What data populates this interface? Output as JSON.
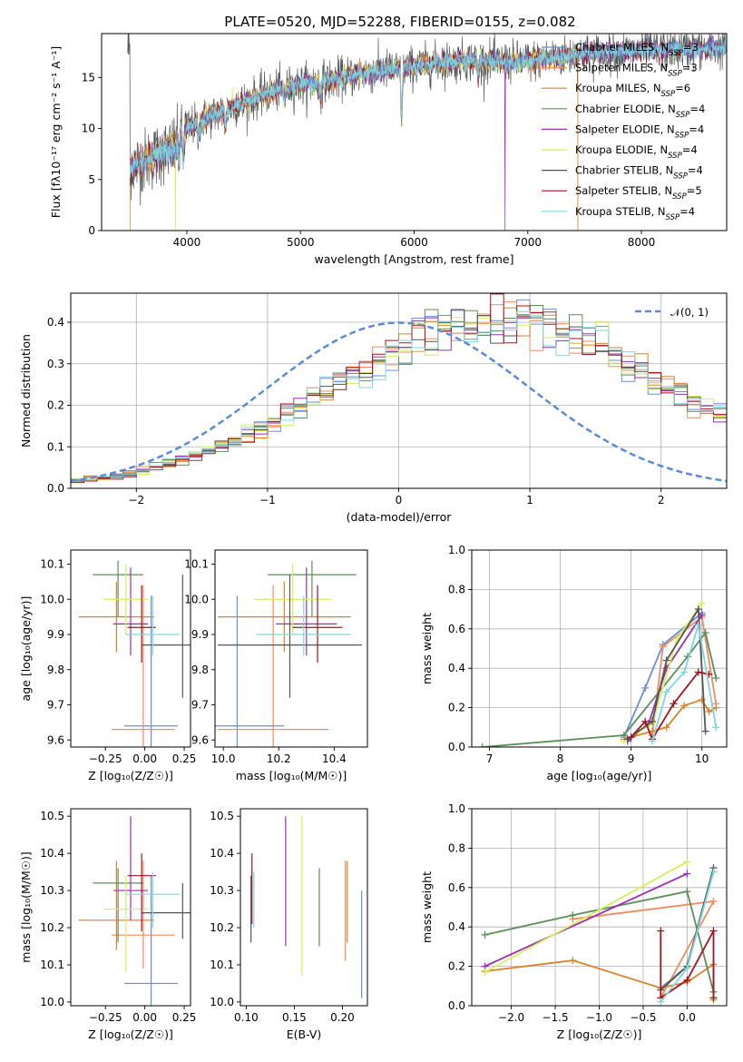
{
  "figure": {
    "title": "PLATE=0520, MJD=52288, FIBERID=0155, z=0.082"
  },
  "colors": {
    "series": [
      "#6a8fd8",
      "#f08c5f",
      "#d9822b",
      "#5a8f5a",
      "#9c2fb0",
      "#d8ee5c",
      "#555555",
      "#a0141e",
      "#7fd6dd"
    ],
    "gaussian": "#5b8bd6",
    "grid": "#b0b0b0"
  },
  "legend_entries": [
    {
      "base": "Chabrier MILES, N",
      "sub": "SSP",
      "eq": "=3"
    },
    {
      "base": "Salpeter MILES, N",
      "sub": "SSP",
      "eq": "=3"
    },
    {
      "base": "Kroupa MILES, N",
      "sub": "SSP",
      "eq": "=6"
    },
    {
      "base": "Chabrier ELODIE, N",
      "sub": "SSP",
      "eq": "=4"
    },
    {
      "base": "Salpeter ELODIE, N",
      "sub": "SSP",
      "eq": "=4"
    },
    {
      "base": "Kroupa ELODIE, N",
      "sub": "SSP",
      "eq": "=4"
    },
    {
      "base": "Chabrier STELIB, N",
      "sub": "SSP",
      "eq": "=4"
    },
    {
      "base": "Salpeter STELIB, N",
      "sub": "SSP",
      "eq": "=5"
    },
    {
      "base": "Kroupa STELIB, N",
      "sub": "SSP",
      "eq": "=4"
    }
  ],
  "gaussian_label": "𝒩(0, 1)",
  "chart_data": [
    {
      "id": "spectrum",
      "type": "line",
      "xlabel": "wavelength [Angstrom, rest frame]",
      "ylabel": "Flux [fλ10⁻¹⁷ erg cm⁻² s⁻¹ A⁻¹]",
      "xlim": [
        3250,
        8750
      ],
      "ylim": [
        0,
        19.3
      ],
      "xticks": [
        4000,
        5000,
        6000,
        7000,
        8000
      ],
      "yticks": [
        0,
        5,
        10,
        15
      ],
      "grid": false,
      "legend": "right",
      "continuum": [
        [
          3500,
          6.2
        ],
        [
          3700,
          7.2
        ],
        [
          3900,
          8.3
        ],
        [
          4000,
          10.0
        ],
        [
          4200,
          11.2
        ],
        [
          4500,
          12.6
        ],
        [
          4800,
          13.8
        ],
        [
          5000,
          14.3
        ],
        [
          5300,
          14.8
        ],
        [
          5600,
          15.5
        ],
        [
          5900,
          15.9
        ],
        [
          6200,
          16.4
        ],
        [
          6500,
          16.7
        ],
        [
          6800,
          16.5
        ],
        [
          7000,
          16.6
        ],
        [
          7300,
          17.0
        ],
        [
          7600,
          17.4
        ],
        [
          8000,
          17.6
        ],
        [
          8400,
          17.8
        ],
        [
          8750,
          17.9
        ]
      ],
      "absorption": [
        [
          3933,
          7.5
        ],
        [
          3968,
          7.0
        ],
        [
          4101,
          8.9
        ],
        [
          4340,
          10.0
        ],
        [
          4861,
          12.9
        ],
        [
          5175,
          13.0
        ],
        [
          5890,
          10.6
        ],
        [
          6563,
          14.9
        ]
      ],
      "dropouts": [
        [
          3500,
          0
        ],
        [
          3900,
          0
        ],
        [
          6800,
          0
        ],
        [
          7440,
          0
        ]
      ]
    },
    {
      "id": "residual-hist",
      "type": "line",
      "xlabel": "(data-model)/error",
      "ylabel": "Normed distribution",
      "xlim": [
        -2.5,
        2.5
      ],
      "ylim": [
        0,
        0.47
      ],
      "xticks": [
        -2,
        -1,
        0,
        1,
        2
      ],
      "yticks": [
        0.0,
        0.1,
        0.2,
        0.3,
        0.4
      ],
      "grid": true,
      "legend": "top-right",
      "bin_edges_start": -2.5,
      "bin_width": 0.1,
      "reference_density": [
        0.018,
        0.022,
        0.026,
        0.032,
        0.037,
        0.044,
        0.052,
        0.06,
        0.069,
        0.078,
        0.09,
        0.102,
        0.115,
        0.13,
        0.145,
        0.161,
        0.178,
        0.196,
        0.214,
        0.233,
        0.252,
        0.271,
        0.29,
        0.308,
        0.325,
        0.341,
        0.355,
        0.368,
        0.379,
        0.388,
        0.394,
        0.398,
        0.399,
        0.399,
        0.397,
        0.393,
        0.386,
        0.377,
        0.366,
        0.352,
        0.336,
        0.319,
        0.3,
        0.281,
        0.262,
        0.243,
        0.224,
        0.206,
        0.188,
        0.171,
        0.155,
        0.14,
        0.126,
        0.113,
        0.1,
        0.089,
        0.079,
        0.07,
        0.061,
        0.054,
        0.047,
        0.041,
        0.036,
        0.032,
        0.028,
        0.024,
        0.021,
        0.019,
        0.018,
        0.017
      ],
      "gaussian": {
        "mu": 0,
        "sigma": 1,
        "xrange": [
          -2.5,
          2.5
        ]
      }
    },
    {
      "id": "age-vs-z",
      "type": "scatter",
      "xlabel": "Z [log₁₀(Z/Z☉)]",
      "ylabel": "age  [log₁₀(age/yr)]",
      "xlim": [
        -0.47,
        0.29
      ],
      "ylim": [
        9.58,
        10.14
      ],
      "xticks": [
        -0.25,
        0.0,
        0.25
      ],
      "xticklabels": [
        "−0.25",
        "0.00",
        "0.25"
      ],
      "yticks": [
        9.6,
        9.7,
        9.8,
        9.9,
        10.0,
        10.1
      ],
      "grid": false,
      "points": [
        {
          "x": 0.04,
          "y": 9.64,
          "xerr": 0.17,
          "ylo": 9.56,
          "yhi": 10.01,
          "s": 0
        },
        {
          "x": -0.01,
          "y": 9.63,
          "xerr": 0.2,
          "ylo": 9.55,
          "yhi": 10.04,
          "s": 1
        },
        {
          "x": -0.18,
          "y": 9.95,
          "xerr": 0.24,
          "ylo": 9.85,
          "yhi": 10.05,
          "s": 2
        },
        {
          "x": -0.17,
          "y": 10.07,
          "xerr": 0.16,
          "ylo": 9.95,
          "yhi": 10.11,
          "s": 3
        },
        {
          "x": -0.09,
          "y": 9.93,
          "xerr": 0.11,
          "ylo": 9.84,
          "yhi": 10.09,
          "s": 4
        },
        {
          "x": -0.12,
          "y": 10.0,
          "xerr": 0.14,
          "ylo": 9.9,
          "yhi": 10.1,
          "s": 5
        },
        {
          "x": 0.24,
          "y": 9.87,
          "xerr": 0.26,
          "ylo": 9.72,
          "yhi": 10.07,
          "s": 6
        },
        {
          "x": -0.02,
          "y": 9.92,
          "xerr": 0.09,
          "ylo": 9.82,
          "yhi": 10.04,
          "s": 7
        },
        {
          "x": 0.05,
          "y": 9.9,
          "xerr": 0.17,
          "ylo": 9.84,
          "yhi": 10.01,
          "s": 8
        }
      ]
    },
    {
      "id": "age-vs-mass",
      "type": "scatter",
      "xlabel": "mass [log₁₀(M/M☉)]",
      "ylabel": "",
      "xlim": [
        9.97,
        10.52
      ],
      "ylim": [
        9.58,
        10.14
      ],
      "xticks": [
        10.0,
        10.2,
        10.4
      ],
      "xticklabels": [
        "10.0",
        "10.2",
        "10.4"
      ],
      "yticks": [
        9.6,
        9.7,
        9.8,
        9.9,
        10.0,
        10.1
      ],
      "grid": false,
      "points": [
        {
          "x": 10.05,
          "y": 9.64,
          "xerr": 0.17,
          "ylo": 9.56,
          "yhi": 10.01,
          "s": 0
        },
        {
          "x": 10.18,
          "y": 9.63,
          "xerr": 0.2,
          "ylo": 9.55,
          "yhi": 10.04,
          "s": 1
        },
        {
          "x": 10.22,
          "y": 9.95,
          "xerr": 0.24,
          "ylo": 9.85,
          "yhi": 10.05,
          "s": 2
        },
        {
          "x": 10.32,
          "y": 10.07,
          "xerr": 0.16,
          "ylo": 9.95,
          "yhi": 10.11,
          "s": 3
        },
        {
          "x": 10.3,
          "y": 9.93,
          "xerr": 0.11,
          "ylo": 9.84,
          "yhi": 10.09,
          "s": 4
        },
        {
          "x": 10.25,
          "y": 10.0,
          "xerr": 0.14,
          "ylo": 9.9,
          "yhi": 10.1,
          "s": 5
        },
        {
          "x": 10.24,
          "y": 9.87,
          "xerr": 0.26,
          "ylo": 9.72,
          "yhi": 10.07,
          "s": 6
        },
        {
          "x": 10.34,
          "y": 9.92,
          "xerr": 0.09,
          "ylo": 9.82,
          "yhi": 10.04,
          "s": 7
        },
        {
          "x": 10.29,
          "y": 9.9,
          "xerr": 0.17,
          "ylo": 9.84,
          "yhi": 10.01,
          "s": 8
        }
      ]
    },
    {
      "id": "weight-vs-age",
      "type": "line",
      "xlabel": "age  [log₁₀(age/yr)]",
      "ylabel": "mass weight",
      "xlim": [
        6.75,
        10.35
      ],
      "ylim": [
        0,
        1
      ],
      "xticks": [
        7,
        8,
        9,
        10
      ],
      "yticks": [
        0.0,
        0.2,
        0.4,
        0.6,
        0.8,
        1.0
      ],
      "grid": true,
      "series": [
        {
          "s": 0,
          "x": [
            8.9,
            9.2,
            9.45,
            10.0
          ],
          "y": [
            0.05,
            0.3,
            0.52,
            0.68
          ]
        },
        {
          "s": 1,
          "x": [
            9.3,
            9.45,
            10.0,
            10.2
          ],
          "y": [
            0.06,
            0.51,
            0.66,
            0.22
          ]
        },
        {
          "s": 2,
          "x": [
            8.9,
            9.3,
            9.5,
            9.75,
            10.0,
            10.1,
            10.2
          ],
          "y": [
            0.04,
            0.08,
            0.1,
            0.21,
            0.24,
            0.18,
            0.2
          ]
        },
        {
          "s": 3,
          "x": [
            6.9,
            8.9,
            9.8,
            10.05,
            10.2
          ],
          "y": [
            0.0,
            0.06,
            0.46,
            0.58,
            0.35
          ]
        },
        {
          "s": 4,
          "x": [
            8.95,
            9.25,
            9.5,
            10.0
          ],
          "y": [
            0.03,
            0.12,
            0.4,
            0.67
          ]
        },
        {
          "s": 5,
          "x": [
            8.9,
            9.3,
            9.65,
            10.0
          ],
          "y": [
            0.03,
            0.12,
            0.55,
            0.73
          ]
        },
        {
          "s": 6,
          "x": [
            8.95,
            9.3,
            9.5,
            9.95,
            10.05
          ],
          "y": [
            0.04,
            0.13,
            0.44,
            0.7,
            0.08
          ]
        },
        {
          "s": 7,
          "x": [
            9.0,
            9.2,
            9.3,
            9.6,
            9.95,
            10.1
          ],
          "y": [
            0.05,
            0.13,
            0.04,
            0.22,
            0.38,
            0.37
          ]
        },
        {
          "s": 8,
          "x": [
            9.3,
            9.5,
            9.75,
            9.95,
            10.2
          ],
          "y": [
            0.03,
            0.28,
            0.38,
            0.62,
            0.1
          ]
        }
      ]
    },
    {
      "id": "mass-vs-z",
      "type": "scatter",
      "xlabel": "Z [log₁₀(Z/Z☉)]",
      "ylabel": "mass [log₁₀(M/M☉)]",
      "xlim": [
        -0.47,
        0.29
      ],
      "ylim": [
        9.99,
        10.52
      ],
      "xticks": [
        -0.25,
        0.0,
        0.25
      ],
      "xticklabels": [
        "−0.25",
        "0.00",
        "0.25"
      ],
      "yticks": [
        10.0,
        10.1,
        10.2,
        10.3,
        10.4,
        10.5
      ],
      "grid": false,
      "points": [
        {
          "x": 0.04,
          "y": 10.05,
          "xerr": 0.17,
          "ylo": 9.99,
          "yhi": 10.34,
          "s": 0
        },
        {
          "x": -0.01,
          "y": 10.18,
          "xerr": 0.2,
          "ylo": 10.09,
          "yhi": 10.38,
          "s": 1
        },
        {
          "x": -0.18,
          "y": 10.22,
          "xerr": 0.24,
          "ylo": 10.14,
          "yhi": 10.38,
          "s": 2
        },
        {
          "x": -0.17,
          "y": 10.32,
          "xerr": 0.16,
          "ylo": 10.16,
          "yhi": 10.36,
          "s": 3
        },
        {
          "x": -0.09,
          "y": 10.3,
          "xerr": 0.11,
          "ylo": 10.22,
          "yhi": 10.5,
          "s": 4
        },
        {
          "x": -0.12,
          "y": 10.25,
          "xerr": 0.14,
          "ylo": 10.08,
          "yhi": 10.34,
          "s": 5
        },
        {
          "x": 0.24,
          "y": 10.24,
          "xerr": 0.26,
          "ylo": 10.17,
          "yhi": 10.32,
          "s": 6
        },
        {
          "x": -0.02,
          "y": 10.34,
          "xerr": 0.09,
          "ylo": 10.19,
          "yhi": 10.4,
          "s": 7
        },
        {
          "x": 0.05,
          "y": 10.29,
          "xerr": 0.17,
          "ylo": 10.2,
          "yhi": 10.35,
          "s": 8
        }
      ]
    },
    {
      "id": "mass-vs-ebv",
      "type": "scatter",
      "xlabel": "E(B-V)",
      "ylabel": "",
      "xlim": [
        0.094,
        0.226
      ],
      "ylim": [
        9.99,
        10.52
      ],
      "xticks": [
        0.1,
        0.15,
        0.2
      ],
      "xticklabels": [
        "0.10",
        "0.15",
        "0.20"
      ],
      "yticks": [
        10.0,
        10.1,
        10.2,
        10.3,
        10.4,
        10.5
      ],
      "grid": false,
      "points": [
        {
          "x": 0.22,
          "y": 10.05,
          "ylo": 10.01,
          "yhi": 10.3,
          "s": 0
        },
        {
          "x": 0.203,
          "y": 10.18,
          "ylo": 10.11,
          "yhi": 10.38,
          "s": 1
        },
        {
          "x": 0.205,
          "y": 10.22,
          "ylo": 10.16,
          "yhi": 10.38,
          "s": 2
        },
        {
          "x": 0.176,
          "y": 10.32,
          "ylo": 10.15,
          "yhi": 10.36,
          "s": 3
        },
        {
          "x": 0.141,
          "y": 10.3,
          "ylo": 10.15,
          "yhi": 10.5,
          "s": 4
        },
        {
          "x": 0.158,
          "y": 10.25,
          "ylo": 10.07,
          "yhi": 10.5,
          "s": 5
        },
        {
          "x": 0.105,
          "y": 10.24,
          "ylo": 10.16,
          "yhi": 10.34,
          "s": 6
        },
        {
          "x": 0.106,
          "y": 10.34,
          "ylo": 10.21,
          "yhi": 10.4,
          "s": 7
        },
        {
          "x": 0.108,
          "y": 10.29,
          "ylo": 10.2,
          "yhi": 10.35,
          "s": 8
        }
      ]
    },
    {
      "id": "weight-vs-z",
      "type": "line",
      "xlabel": "Z [log₁₀(Z/Z☉)]",
      "ylabel": "mass weight",
      "xlim": [
        -2.45,
        0.45
      ],
      "ylim": [
        0,
        1
      ],
      "xticks": [
        -2.0,
        -1.5,
        -1.0,
        -0.5,
        0.0
      ],
      "xticklabels": [
        "−2.0",
        "−1.5",
        "−1.0",
        "−0.5",
        "0.0"
      ],
      "yticks": [
        0.0,
        0.2,
        0.4,
        0.6,
        0.8,
        1.0
      ],
      "grid": true,
      "series": [
        {
          "s": 0,
          "x": [
            -0.3,
            0.0,
            0.3
          ],
          "y": [
            0.09,
            0.2,
            0.68
          ]
        },
        {
          "s": 1,
          "x": [
            -1.3,
            0.3,
            -0.3
          ],
          "y": [
            0.44,
            0.53,
            0.04
          ]
        },
        {
          "s": 2,
          "x": [
            -2.3,
            -1.3,
            -0.3,
            0.0,
            0.3,
            0.3
          ],
          "y": [
            0.175,
            0.23,
            0.09,
            0.12,
            0.21,
            0.03
          ]
        },
        {
          "s": 3,
          "x": [
            -2.3,
            -1.3,
            0.0,
            0.3
          ],
          "y": [
            0.36,
            0.46,
            0.58,
            0.07
          ]
        },
        {
          "s": 4,
          "x": [
            -2.3,
            0.0
          ],
          "y": [
            0.2,
            0.67
          ]
        },
        {
          "s": 5,
          "x": [
            -2.3,
            0.0
          ],
          "y": [
            0.17,
            0.73
          ]
        },
        {
          "s": 6,
          "x": [
            -0.3,
            0.0,
            0.3
          ],
          "y": [
            0.08,
            0.2,
            0.7
          ]
        },
        {
          "s": 7,
          "x": [
            -0.3,
            -0.3,
            0.0,
            0.3,
            0.3
          ],
          "y": [
            0.38,
            0.04,
            0.13,
            0.38,
            0.04
          ]
        },
        {
          "s": 8,
          "x": [
            -0.3,
            0.0,
            0.3
          ],
          "y": [
            0.02,
            0.19,
            0.68
          ]
        }
      ]
    }
  ]
}
